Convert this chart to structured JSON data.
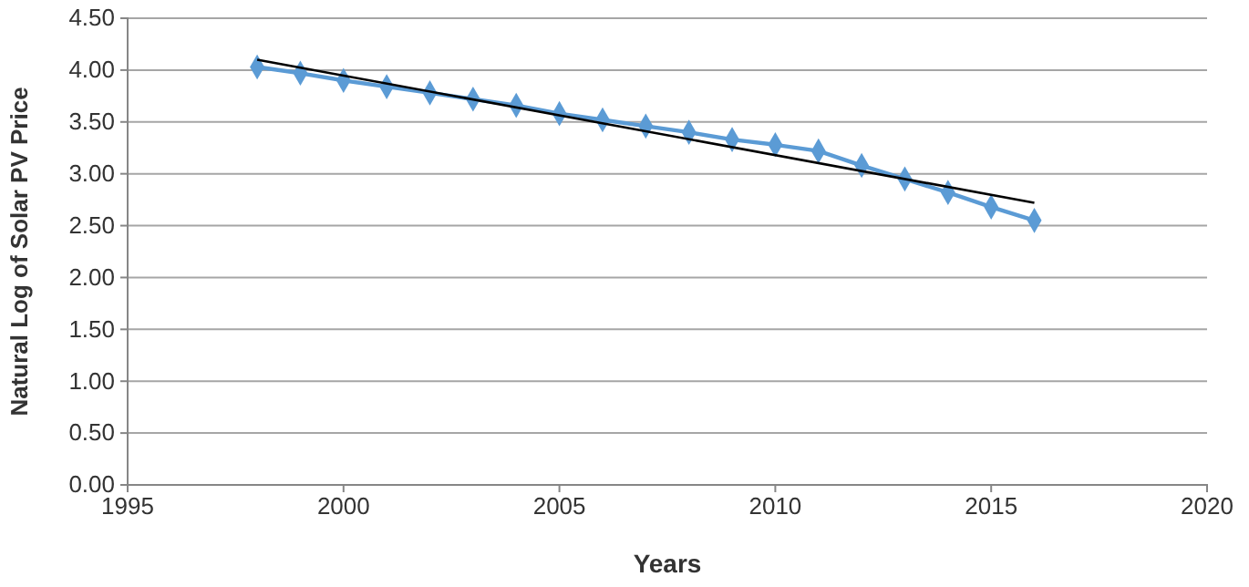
{
  "chart_data": {
    "type": "line",
    "xlabel": "Years",
    "ylabel": "Natural Log of Solar PV Price",
    "x": [
      1998,
      1999,
      2000,
      2001,
      2002,
      2003,
      2004,
      2005,
      2006,
      2007,
      2008,
      2009,
      2010,
      2011,
      2012,
      2013,
      2014,
      2015,
      2016
    ],
    "series": [
      {
        "color": "#5b9bd5",
        "marker": "diamond",
        "values": [
          4.03,
          3.97,
          3.9,
          3.84,
          3.78,
          3.72,
          3.66,
          3.58,
          3.52,
          3.46,
          3.4,
          3.33,
          3.28,
          3.22,
          3.08,
          2.95,
          2.82,
          2.68,
          2.55
        ]
      },
      {
        "type": "line",
        "color": "#000000",
        "marker": "none",
        "x": [
          1998,
          2016
        ],
        "values": [
          4.1,
          2.72
        ]
      }
    ],
    "xlim": [
      1995,
      2020
    ],
    "xticks": [
      1995,
      2000,
      2005,
      2010,
      2015,
      2020
    ],
    "ylim": [
      0,
      4.5
    ],
    "yticks": [
      {
        "value": 0,
        "label": "0.00"
      },
      {
        "value": 0.5,
        "label": "0.50"
      },
      {
        "value": 1,
        "label": "1.00"
      },
      {
        "value": 1.5,
        "label": "1.50"
      },
      {
        "value": 2,
        "label": "2.00"
      },
      {
        "value": 2.5,
        "label": "2.50"
      },
      {
        "value": 3,
        "label": "3.00"
      },
      {
        "value": 3.5,
        "label": "3.50"
      },
      {
        "value": 4,
        "label": "4.00"
      },
      {
        "value": 4.5,
        "label": "4.50"
      }
    ],
    "grid": "y"
  }
}
